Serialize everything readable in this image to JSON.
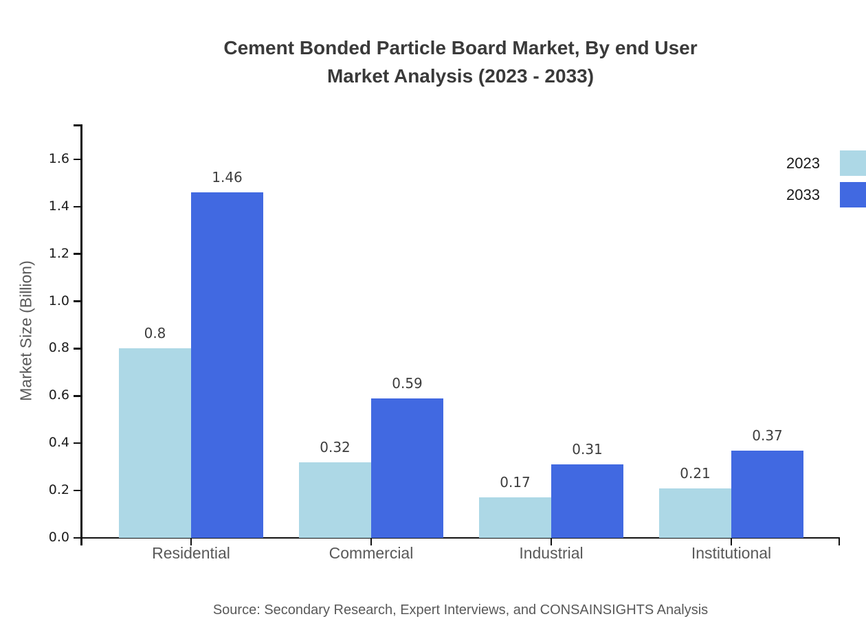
{
  "title": {
    "line1": "Cement Bonded Particle Board Market, By end User",
    "line2": "Market Analysis (2023 - 2033)"
  },
  "chart_data": {
    "type": "bar",
    "categories": [
      "Residential",
      "Commercial",
      "Industrial",
      "Institutional"
    ],
    "series": [
      {
        "name": "2023",
        "color": "#ADD8E6",
        "values": [
          0.8,
          0.32,
          0.17,
          0.21
        ]
      },
      {
        "name": "2033",
        "color": "#4169E1",
        "values": [
          1.46,
          0.59,
          0.31,
          0.37
        ]
      }
    ],
    "value_labels": [
      "0.8",
      "1.46",
      "0.32",
      "0.59",
      "0.17",
      "0.31",
      "0.21",
      "0.37"
    ],
    "xlabel": "",
    "ylabel": "Market Size (Billion)",
    "ylim": [
      0,
      1.75
    ],
    "yticks": [
      "0.0",
      "0.2",
      "0.4",
      "0.6",
      "0.8",
      "1.0",
      "1.2",
      "1.4",
      "1.6"
    ],
    "grid": false,
    "legend_position": "top-right"
  },
  "source": "Source: Secondary Research, Expert Interviews, and CONSAINSIGHTS Analysis"
}
